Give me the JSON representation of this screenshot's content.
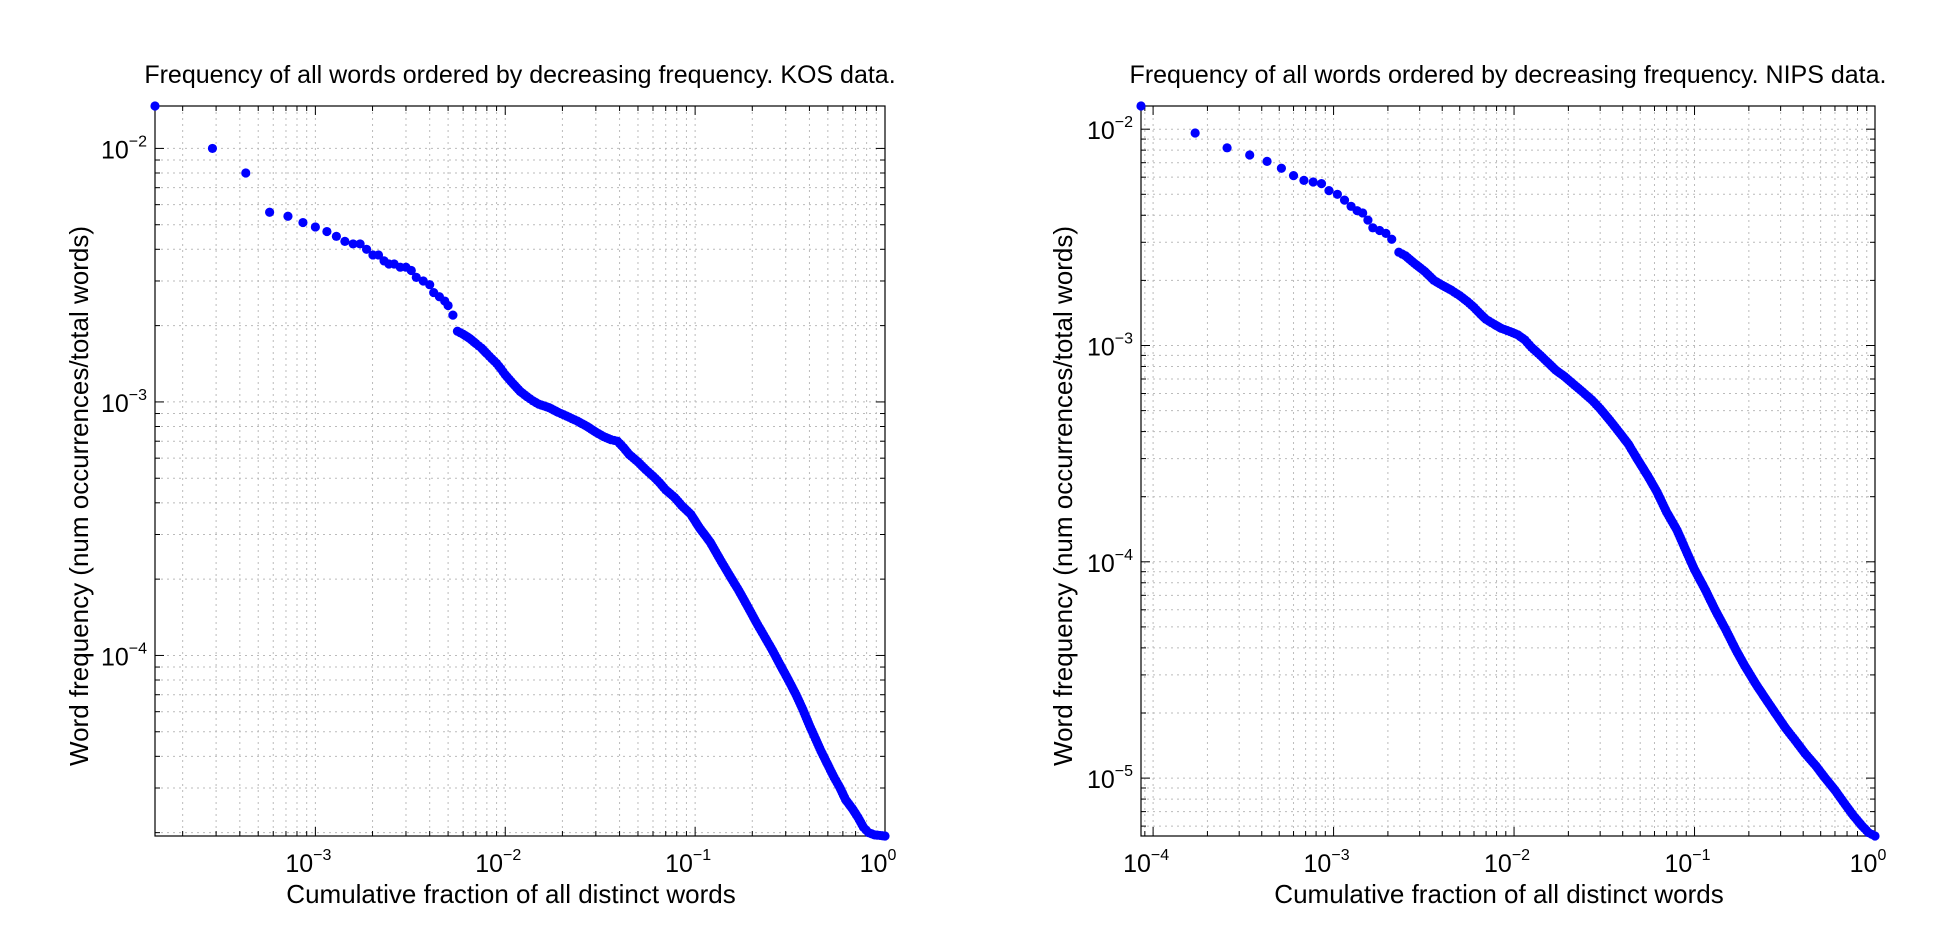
{
  "chart_data": [
    {
      "type": "scatter",
      "title": "Frequency of all words ordered by decreasing frequency. KOS data.",
      "xlabel": "Cumulative fraction of all distinct words",
      "ylabel": "Word frequency (num occurrences/total words)",
      "xscale": "log",
      "yscale": "log",
      "xlim": [
        0.000143,
        1.0
      ],
      "ylim": [
        1.94e-05,
        0.0147
      ],
      "grid": true,
      "xticks": [
        {
          "base": "10",
          "exp": "−3",
          "value": 0.001
        },
        {
          "base": "10",
          "exp": "−2",
          "value": 0.01
        },
        {
          "base": "10",
          "exp": "−1",
          "value": 0.1
        },
        {
          "base": "10",
          "exp": "0",
          "value": 1.0
        }
      ],
      "yticks": [
        {
          "base": "10",
          "exp": "−4",
          "value": 0.0001
        },
        {
          "base": "10",
          "exp": "−3",
          "value": 0.001
        },
        {
          "base": "10",
          "exp": "−2",
          "value": 0.01
        }
      ],
      "color": "#0000ff",
      "points": [
        [
          0.000143,
          0.0147
        ],
        [
          0.000287,
          0.01
        ],
        [
          0.00043,
          0.008
        ],
        [
          0.000574,
          0.0056
        ],
        [
          0.000717,
          0.0054
        ],
        [
          0.00086,
          0.0051
        ],
        [
          0.001,
          0.0049
        ],
        [
          0.00115,
          0.0047
        ],
        [
          0.00129,
          0.0045
        ],
        [
          0.00143,
          0.0043
        ],
        [
          0.00158,
          0.0042
        ],
        [
          0.00172,
          0.0042
        ],
        [
          0.00186,
          0.004
        ],
        [
          0.00201,
          0.0038
        ],
        [
          0.00215,
          0.0038
        ],
        [
          0.0023,
          0.0036
        ],
        [
          0.00244,
          0.0035
        ],
        [
          0.0026,
          0.0035
        ],
        [
          0.0028,
          0.0034
        ],
        [
          0.003,
          0.0034
        ],
        [
          0.0032,
          0.0033
        ],
        [
          0.0034,
          0.0031
        ],
        [
          0.0037,
          0.003
        ],
        [
          0.004,
          0.0029
        ],
        [
          0.0042,
          0.0027
        ],
        [
          0.0045,
          0.0026
        ],
        [
          0.0048,
          0.0025
        ],
        [
          0.005,
          0.0024
        ],
        [
          0.0053,
          0.0022
        ],
        [
          0.0056,
          0.0019
        ],
        [
          0.006,
          0.00185
        ],
        [
          0.0065,
          0.00178
        ],
        [
          0.007,
          0.0017
        ],
        [
          0.0075,
          0.00163
        ],
        [
          0.008,
          0.00155
        ],
        [
          0.0085,
          0.00148
        ],
        [
          0.009,
          0.00142
        ],
        [
          0.0095,
          0.00135
        ],
        [
          0.01,
          0.00128
        ],
        [
          0.011,
          0.00118
        ],
        [
          0.012,
          0.0011
        ],
        [
          0.013,
          0.00105
        ],
        [
          0.014,
          0.00101
        ],
        [
          0.015,
          0.00098
        ],
        [
          0.017,
          0.00095
        ],
        [
          0.019,
          0.00091
        ],
        [
          0.021,
          0.00088
        ],
        [
          0.024,
          0.00084
        ],
        [
          0.027,
          0.0008
        ],
        [
          0.03,
          0.00076
        ],
        [
          0.033,
          0.00073
        ],
        [
          0.036,
          0.00071
        ],
        [
          0.039,
          0.0007
        ],
        [
          0.042,
          0.00066
        ],
        [
          0.045,
          0.00062
        ],
        [
          0.05,
          0.00058
        ],
        [
          0.055,
          0.00054
        ],
        [
          0.06,
          0.00051
        ],
        [
          0.065,
          0.00048
        ],
        [
          0.07,
          0.00045
        ],
        [
          0.078,
          0.00042
        ],
        [
          0.085,
          0.00039
        ],
        [
          0.095,
          0.00036
        ],
        [
          0.105,
          0.00032
        ],
        [
          0.12,
          0.00028
        ],
        [
          0.135,
          0.00024
        ],
        [
          0.15,
          0.00021
        ],
        [
          0.17,
          0.00018
        ],
        [
          0.19,
          0.000155
        ],
        [
          0.21,
          0.000135
        ],
        [
          0.23,
          0.00012
        ],
        [
          0.255,
          0.000105
        ],
        [
          0.28,
          9.2e-05
        ],
        [
          0.31,
          8e-05
        ],
        [
          0.34,
          7e-05
        ],
        [
          0.37,
          6.1e-05
        ],
        [
          0.4,
          5.3e-05
        ],
        [
          0.43,
          4.7e-05
        ],
        [
          0.46,
          4.2e-05
        ],
        [
          0.5,
          3.7e-05
        ],
        [
          0.54,
          3.3e-05
        ],
        [
          0.58,
          3e-05
        ],
        [
          0.62,
          2.7e-05
        ],
        [
          0.67,
          2.5e-05
        ],
        [
          0.72,
          2.3e-05
        ],
        [
          0.77,
          2.1e-05
        ],
        [
          0.82,
          2e-05
        ],
        [
          0.88,
          1.96e-05
        ],
        [
          0.94,
          1.95e-05
        ],
        [
          1.0,
          1.94e-05
        ]
      ]
    },
    {
      "type": "scatter",
      "title": "Frequency of all words ordered by decreasing frequency. NIPS data.",
      "xlabel": "Cumulative fraction of all distinct words",
      "ylabel": "Word frequency (num occurrences/total words)",
      "xscale": "log",
      "yscale": "log",
      "xlim": [
        8.57e-05,
        1.0
      ],
      "ylim": [
        5.4e-06,
        0.0128
      ],
      "grid": true,
      "xticks": [
        {
          "base": "10",
          "exp": "−4",
          "value": 0.0001
        },
        {
          "base": "10",
          "exp": "−3",
          "value": 0.001
        },
        {
          "base": "10",
          "exp": "−2",
          "value": 0.01
        },
        {
          "base": "10",
          "exp": "−1",
          "value": 0.1
        },
        {
          "base": "10",
          "exp": "0",
          "value": 1.0
        }
      ],
      "yticks": [
        {
          "base": "10",
          "exp": "−5",
          "value": 1e-05
        },
        {
          "base": "10",
          "exp": "−4",
          "value": 0.0001
        },
        {
          "base": "10",
          "exp": "−3",
          "value": 0.001
        },
        {
          "base": "10",
          "exp": "−2",
          "value": 0.01
        }
      ],
      "color": "#0000ff",
      "points": [
        [
          8.57e-05,
          0.0128
        ],
        [
          0.000171,
          0.0096
        ],
        [
          0.000257,
          0.0082
        ],
        [
          0.000343,
          0.0076
        ],
        [
          0.000428,
          0.0071
        ],
        [
          0.000514,
          0.0066
        ],
        [
          0.0006,
          0.0061
        ],
        [
          0.000685,
          0.0058
        ],
        [
          0.000771,
          0.0057
        ],
        [
          0.000857,
          0.0056
        ],
        [
          0.000943,
          0.0052
        ],
        [
          0.00105,
          0.005
        ],
        [
          0.00115,
          0.0047
        ],
        [
          0.00125,
          0.0044
        ],
        [
          0.00135,
          0.0042
        ],
        [
          0.00145,
          0.0041
        ],
        [
          0.00155,
          0.0038
        ],
        [
          0.00165,
          0.0035
        ],
        [
          0.0018,
          0.0034
        ],
        [
          0.00195,
          0.0033
        ],
        [
          0.0021,
          0.0031
        ],
        [
          0.0023,
          0.0027
        ],
        [
          0.0025,
          0.0026
        ],
        [
          0.0028,
          0.0024
        ],
        [
          0.0032,
          0.0022
        ],
        [
          0.0036,
          0.002
        ],
        [
          0.004,
          0.0019
        ],
        [
          0.0045,
          0.0018
        ],
        [
          0.005,
          0.0017
        ],
        [
          0.0055,
          0.0016
        ],
        [
          0.006,
          0.0015
        ],
        [
          0.0065,
          0.0014
        ],
        [
          0.007,
          0.00132
        ],
        [
          0.0078,
          0.00125
        ],
        [
          0.0085,
          0.0012
        ],
        [
          0.0095,
          0.00116
        ],
        [
          0.0105,
          0.00112
        ],
        [
          0.0115,
          0.00106
        ],
        [
          0.0125,
          0.00098
        ],
        [
          0.014,
          0.0009
        ],
        [
          0.0155,
          0.00083
        ],
        [
          0.017,
          0.00077
        ],
        [
          0.019,
          0.00072
        ],
        [
          0.021,
          0.00067
        ],
        [
          0.024,
          0.00061
        ],
        [
          0.027,
          0.00056
        ],
        [
          0.03,
          0.00051
        ],
        [
          0.034,
          0.00045
        ],
        [
          0.038,
          0.0004
        ],
        [
          0.043,
          0.00035
        ],
        [
          0.048,
          0.0003
        ],
        [
          0.055,
          0.00025
        ],
        [
          0.062,
          0.00021
        ],
        [
          0.07,
          0.00017
        ],
        [
          0.08,
          0.00014
        ],
        [
          0.09,
          0.000112
        ],
        [
          0.1,
          9.2e-05
        ],
        [
          0.115,
          7.4e-05
        ],
        [
          0.13,
          6e-05
        ],
        [
          0.15,
          4.8e-05
        ],
        [
          0.17,
          3.9e-05
        ],
        [
          0.19,
          3.3e-05
        ],
        [
          0.22,
          2.7e-05
        ],
        [
          0.25,
          2.3e-05
        ],
        [
          0.28,
          2e-05
        ],
        [
          0.32,
          1.7e-05
        ],
        [
          0.36,
          1.5e-05
        ],
        [
          0.41,
          1.3e-05
        ],
        [
          0.47,
          1.14e-05
        ],
        [
          0.53,
          1e-05
        ],
        [
          0.6,
          8.8e-06
        ],
        [
          0.68,
          7.6e-06
        ],
        [
          0.76,
          6.7e-06
        ],
        [
          0.85,
          6e-06
        ],
        [
          0.92,
          5.6e-06
        ],
        [
          1.0,
          5.4e-06
        ]
      ]
    }
  ]
}
